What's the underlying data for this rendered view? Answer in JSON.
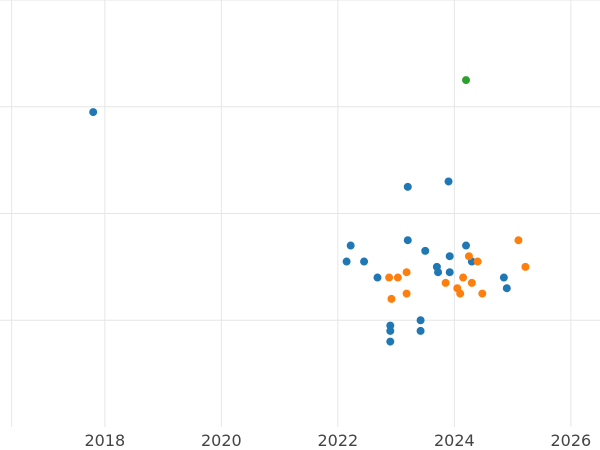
{
  "chart_data": {
    "type": "scatter",
    "title": "",
    "xlabel": "",
    "ylabel": "",
    "xlim": [
      2016.2,
      2026.5
    ],
    "ylim": [
      0,
      4
    ],
    "x_ticks": [
      2018,
      2020,
      2022,
      2024,
      2026
    ],
    "x_tick_labels": [
      "2018",
      "2020",
      "2022",
      "2024",
      "2026"
    ],
    "y_grid": [
      1,
      2,
      3,
      4
    ],
    "grid": true,
    "colors": [
      "#1f77b4",
      "#ff7f0e",
      "#2ca02c"
    ],
    "series": [
      {
        "color": "#1f77b4",
        "points": [
          {
            "x": 2017.8,
            "y": 2.95
          },
          {
            "x": 2022.15,
            "y": 1.55
          },
          {
            "x": 2022.22,
            "y": 1.7
          },
          {
            "x": 2022.45,
            "y": 1.55
          },
          {
            "x": 2022.68,
            "y": 1.4
          },
          {
            "x": 2022.9,
            "y": 0.95
          },
          {
            "x": 2022.9,
            "y": 0.9
          },
          {
            "x": 2022.9,
            "y": 0.8
          },
          {
            "x": 2023.2,
            "y": 2.25
          },
          {
            "x": 2023.2,
            "y": 1.75
          },
          {
            "x": 2023.42,
            "y": 1.0
          },
          {
            "x": 2023.42,
            "y": 0.9
          },
          {
            "x": 2023.5,
            "y": 1.65
          },
          {
            "x": 2023.7,
            "y": 1.5
          },
          {
            "x": 2023.72,
            "y": 1.45
          },
          {
            "x": 2023.9,
            "y": 2.3
          },
          {
            "x": 2023.92,
            "y": 1.6
          },
          {
            "x": 2023.92,
            "y": 1.45
          },
          {
            "x": 2024.2,
            "y": 1.7
          },
          {
            "x": 2024.3,
            "y": 1.55
          },
          {
            "x": 2024.85,
            "y": 1.4
          },
          {
            "x": 2024.9,
            "y": 1.3
          }
        ]
      },
      {
        "color": "#ff7f0e",
        "points": [
          {
            "x": 2022.88,
            "y": 1.4
          },
          {
            "x": 2022.92,
            "y": 1.2
          },
          {
            "x": 2023.03,
            "y": 1.4
          },
          {
            "x": 2023.18,
            "y": 1.45
          },
          {
            "x": 2023.18,
            "y": 1.25
          },
          {
            "x": 2023.85,
            "y": 1.35
          },
          {
            "x": 2024.05,
            "y": 1.3
          },
          {
            "x": 2024.1,
            "y": 1.25
          },
          {
            "x": 2024.15,
            "y": 1.4
          },
          {
            "x": 2024.25,
            "y": 1.6
          },
          {
            "x": 2024.3,
            "y": 1.35
          },
          {
            "x": 2024.4,
            "y": 1.55
          },
          {
            "x": 2024.48,
            "y": 1.25
          },
          {
            "x": 2025.1,
            "y": 1.75
          },
          {
            "x": 2025.22,
            "y": 1.5
          }
        ]
      },
      {
        "color": "#2ca02c",
        "points": [
          {
            "x": 2024.2,
            "y": 3.25
          }
        ]
      }
    ]
  }
}
